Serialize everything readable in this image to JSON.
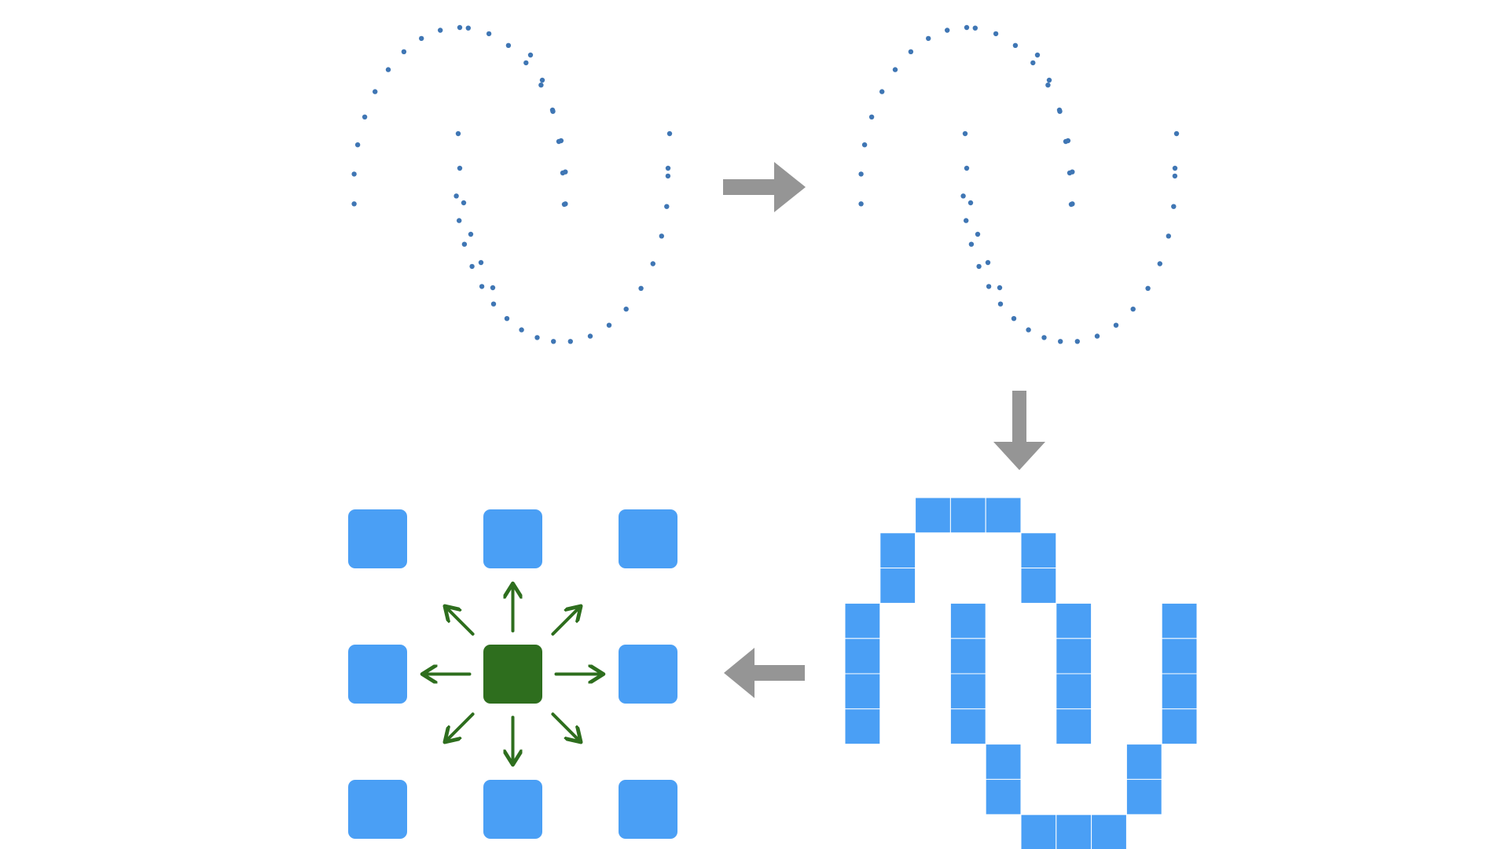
{
  "colors": {
    "background": "#ffffff",
    "dots": "#3f76b4",
    "arrow": "#959595",
    "pixel": "#4a9ff5",
    "grid_line": "#ffffff",
    "neighbor_cell": "#4a9ff5",
    "center_cell": "#2e6e1e",
    "direction_arrow": "#2e6e1e"
  },
  "panels": [
    {
      "id": "sampled-curve",
      "description_type": "dotted sinusoid (point samples)",
      "dot_count": 52
    },
    {
      "id": "sampled-curve-copy",
      "description_type": "dotted sinusoid (same samples)",
      "dot_count": 52
    },
    {
      "id": "rasterized-curve",
      "description_type": "pixel grid rendering of sinusoid",
      "grid_columns": 10,
      "grid_rows": 10,
      "filled_cells": [
        [
          0,
          2
        ],
        [
          0,
          3
        ],
        [
          0,
          4
        ],
        [
          1,
          1
        ],
        [
          1,
          5
        ],
        [
          2,
          1
        ],
        [
          2,
          5
        ],
        [
          3,
          0
        ],
        [
          3,
          3
        ],
        [
          3,
          6
        ],
        [
          3,
          9
        ],
        [
          4,
          0
        ],
        [
          4,
          3
        ],
        [
          4,
          6
        ],
        [
          4,
          9
        ],
        [
          5,
          0
        ],
        [
          5,
          3
        ],
        [
          5,
          6
        ],
        [
          5,
          9
        ],
        [
          6,
          0
        ],
        [
          6,
          3
        ],
        [
          6,
          6
        ],
        [
          6,
          9
        ],
        [
          7,
          4
        ],
        [
          7,
          8
        ],
        [
          8,
          4
        ],
        [
          8,
          8
        ],
        [
          9,
          5
        ],
        [
          9,
          6
        ],
        [
          9,
          7
        ]
      ]
    },
    {
      "id": "neighborhood",
      "description_type": "3x3 neighborhood with center cell and 8 direction arrows",
      "directions": [
        "n",
        "ne",
        "e",
        "se",
        "s",
        "sw",
        "w",
        "nw"
      ]
    }
  ],
  "flow_arrows": [
    {
      "id": "arrow-right",
      "direction": "right"
    },
    {
      "id": "arrow-down",
      "direction": "down"
    },
    {
      "id": "arrow-left",
      "direction": "left"
    }
  ]
}
